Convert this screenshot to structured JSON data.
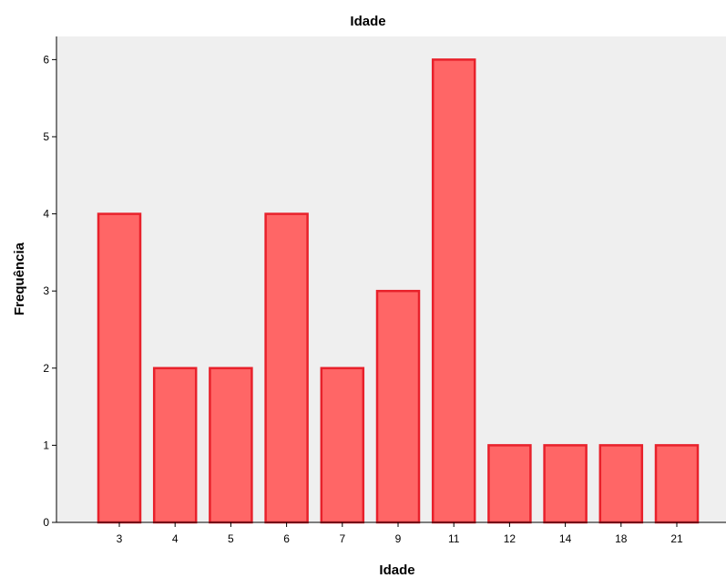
{
  "chart_data": {
    "type": "bar",
    "title": "Idade",
    "xlabel": "Idade",
    "ylabel": "Frequência",
    "categories": [
      "3",
      "4",
      "5",
      "6",
      "7",
      "9",
      "11",
      "12",
      "14",
      "18",
      "21"
    ],
    "values": [
      4,
      2,
      2,
      4,
      2,
      3,
      6,
      1,
      1,
      1,
      1
    ],
    "ylim": [
      0,
      6.3
    ],
    "yticks": [
      0,
      1,
      2,
      3,
      4,
      5,
      6
    ],
    "grid": false,
    "colors": {
      "bar_fill": "#ff6666",
      "bar_stroke": "#e8212b",
      "plot_background": "#efefef",
      "axis": "#000000"
    }
  }
}
